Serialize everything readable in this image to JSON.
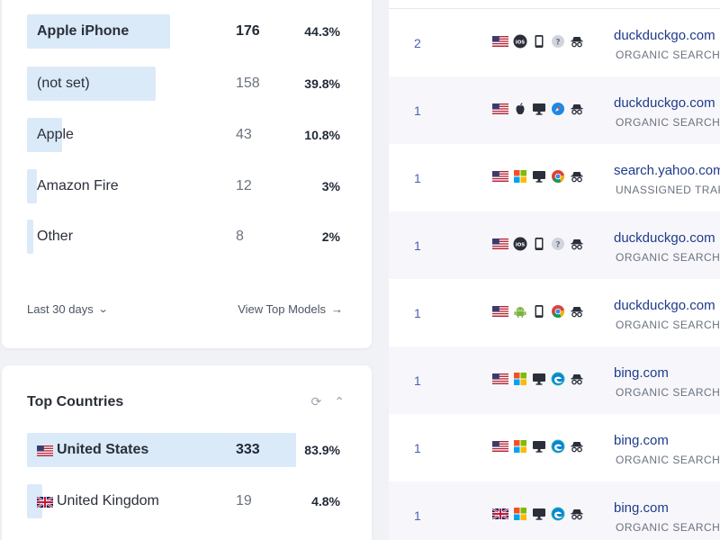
{
  "top_models": {
    "rows": [
      {
        "label": "Apple iPhone",
        "count": "176",
        "pct": "44.3%",
        "share": 0.443
      },
      {
        "label": "(not set)",
        "count": "158",
        "pct": "39.8%",
        "share": 0.398
      },
      {
        "label": "Apple",
        "count": "43",
        "pct": "10.8%",
        "share": 0.108
      },
      {
        "label": "Amazon Fire",
        "count": "12",
        "pct": "3%",
        "share": 0.03
      },
      {
        "label": "Other",
        "count": "8",
        "pct": "2%",
        "share": 0.02
      }
    ],
    "period_label": "Last 30 days",
    "view_all_label": "View Top Models"
  },
  "top_countries": {
    "title": "Top Countries",
    "rows": [
      {
        "label": "United States",
        "count": "333",
        "pct": "83.9%",
        "share": 0.839,
        "flag": "us-flag"
      },
      {
        "label": "United Kingdom",
        "count": "19",
        "pct": "4.8%",
        "share": 0.048,
        "flag": "uk-flag"
      }
    ]
  },
  "visits": [
    {
      "count": "2",
      "icons": [
        "us-flag",
        "ios-icon",
        "phone-icon",
        "unknown-browser-icon",
        "incognito-icon"
      ],
      "domain": "duckduckgo.com",
      "type": "ORGANIC SEARCH"
    },
    {
      "count": "1",
      "icons": [
        "us-flag",
        "apple-icon",
        "desktop-icon",
        "safari-icon",
        "incognito-icon"
      ],
      "domain": "duckduckgo.com",
      "type": "ORGANIC SEARCH"
    },
    {
      "count": "1",
      "icons": [
        "us-flag",
        "windows-icon",
        "desktop-icon",
        "chrome-icon",
        "incognito-icon"
      ],
      "domain": "search.yahoo.com",
      "type": "UNASSIGNED TRAFF"
    },
    {
      "count": "1",
      "icons": [
        "us-flag",
        "ios-icon",
        "phone-icon",
        "unknown-browser-icon",
        "incognito-icon"
      ],
      "domain": "duckduckgo.com",
      "type": "ORGANIC SEARCH"
    },
    {
      "count": "1",
      "icons": [
        "us-flag",
        "android-icon",
        "phone-icon",
        "chrome-icon",
        "incognito-icon"
      ],
      "domain": "duckduckgo.com",
      "type": "ORGANIC SEARCH"
    },
    {
      "count": "1",
      "icons": [
        "us-flag",
        "windows-icon",
        "desktop-icon",
        "edge-icon",
        "incognito-icon"
      ],
      "domain": "bing.com",
      "type": "ORGANIC SEARCH"
    },
    {
      "count": "1",
      "icons": [
        "us-flag",
        "windows-icon",
        "desktop-icon",
        "edge-icon",
        "incognito-icon"
      ],
      "domain": "bing.com",
      "type": "ORGANIC SEARCH"
    },
    {
      "count": "1",
      "icons": [
        "uk-flag",
        "windows-icon",
        "desktop-icon",
        "edge-icon",
        "incognito-icon"
      ],
      "domain": "bing.com",
      "type": "ORGANIC SEARCH"
    }
  ],
  "colors": {
    "bar": "#dbeaf8",
    "link": "#1f3b8a",
    "count": "#4c5fb0"
  }
}
